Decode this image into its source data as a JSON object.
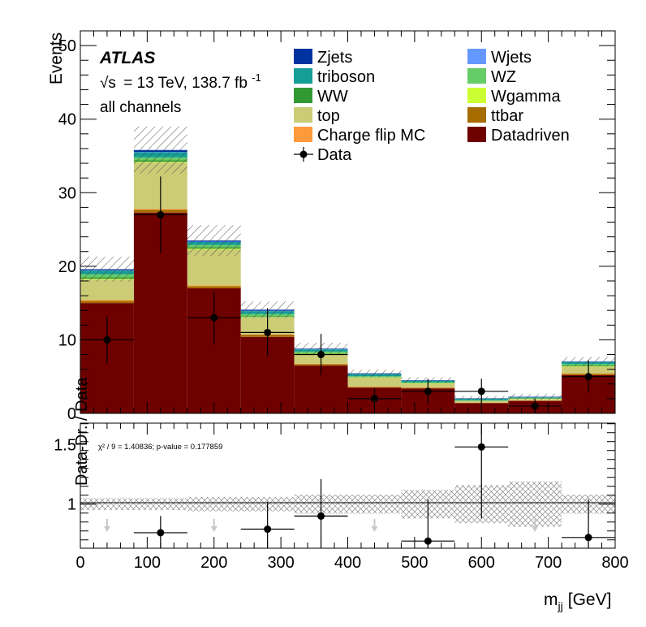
{
  "chart_data": {
    "type": "bar",
    "stacked": true,
    "experiment": "ATLAS",
    "energy_label": "= 13 TeV, 138.7 fb",
    "energy_sqrt": "√s",
    "energy_exp": "-1",
    "channel_label": "all channels",
    "ylabel": "Events",
    "xlabel": "m",
    "xlabel_sub": "jj",
    "xlabel_unit": "[GeV]",
    "xlim": [
      0,
      800
    ],
    "ylim": [
      0,
      52
    ],
    "x_ticks": [
      "0",
      "100",
      "200",
      "300",
      "400",
      "500",
      "600",
      "700",
      "800"
    ],
    "y_ticks": [
      "0",
      "10",
      "20",
      "30",
      "40",
      "50"
    ],
    "bin_edges": [
      0,
      80,
      160,
      240,
      320,
      400,
      480,
      560,
      640,
      720,
      800
    ],
    "series": [
      {
        "name": "Datadriven",
        "color": "#6e0000",
        "values": [
          15.0,
          27.3,
          17.0,
          10.4,
          6.5,
          3.5,
          3.4,
          1.4,
          1.7,
          5.2
        ]
      },
      {
        "name": "ttbar",
        "color": "#a66c00",
        "values": [
          0.3,
          0.4,
          0.3,
          0.3,
          0.2,
          0.1,
          0.1,
          0.05,
          0.05,
          0.2
        ]
      },
      {
        "name": "Charge flip MC",
        "color": "#ff9a3c",
        "values": [
          0.1,
          0.1,
          0.1,
          0.05,
          0.05,
          0.05,
          0.05,
          0.02,
          0.02,
          0.05
        ]
      },
      {
        "name": "top",
        "color": "#cccc77",
        "values": [
          2.8,
          6.3,
          4.9,
          2.3,
          1.3,
          1.2,
          0.5,
          0.2,
          0.2,
          0.9
        ]
      },
      {
        "name": "Wgamma",
        "color": "#ccff33",
        "values": [
          0.1,
          0.1,
          0.1,
          0.05,
          0.05,
          0.05,
          0.05,
          0.02,
          0.02,
          0.05
        ]
      },
      {
        "name": "WW",
        "color": "#339933",
        "values": [
          0.2,
          0.2,
          0.2,
          0.1,
          0.1,
          0.05,
          0.05,
          0.05,
          0.05,
          0.1
        ]
      },
      {
        "name": "WZ",
        "color": "#66cc66",
        "values": [
          0.4,
          0.4,
          0.3,
          0.3,
          0.2,
          0.1,
          0.1,
          0.05,
          0.05,
          0.2
        ]
      },
      {
        "name": "triboson",
        "color": "#149e96",
        "values": [
          0.5,
          0.7,
          0.4,
          0.4,
          0.3,
          0.3,
          0.2,
          0.2,
          0.1,
          0.3
        ]
      },
      {
        "name": "Wjets",
        "color": "#6699ff",
        "values": [
          0.05,
          0.05,
          0.05,
          0.05,
          0.02,
          0.02,
          0.02,
          0.02,
          0.02,
          0.02
        ]
      },
      {
        "name": "Zjets",
        "color": "#0033a0",
        "values": [
          0.15,
          0.25,
          0.15,
          0.15,
          0.08,
          0.08,
          0.05,
          0.05,
          0.05,
          0.05
        ]
      }
    ],
    "mc_uncertainty": [
      1.7,
      3.2,
      2.1,
      1.1,
      0.8,
      0.5,
      0.4,
      0.3,
      0.4,
      0.6
    ],
    "data": {
      "name": "Data",
      "x": [
        40,
        120,
        200,
        280,
        360,
        440,
        520,
        600,
        680,
        760
      ],
      "y": [
        10,
        27,
        13,
        11,
        8,
        2,
        3,
        3,
        1,
        5
      ],
      "yerr": [
        3.2,
        5.2,
        3.6,
        3.3,
        2.8,
        1.4,
        1.7,
        1.7,
        1.0,
        2.2
      ]
    },
    "legend": {
      "left": [
        "Zjets",
        "triboson",
        "WW",
        "top",
        "Charge flip MC",
        "Data"
      ],
      "right": [
        "Wjets",
        "WZ",
        "Wgamma",
        "ttbar",
        "Datadriven"
      ]
    },
    "ratio": {
      "ylabel": "Data-Dr. / Data",
      "ylim": [
        0.63,
        1.68
      ],
      "y_ticks": [
        "1",
        "1.5"
      ],
      "chi2_text": "χ² / 9 = 1.40836; p-value = 0.177859",
      "x": [
        40,
        120,
        200,
        280,
        360,
        440,
        520,
        600,
        680,
        760
      ],
      "values": [
        null,
        0.76,
        null,
        0.79,
        0.9,
        null,
        0.69,
        1.48,
        null,
        0.72
      ],
      "yerr": [
        null,
        0.14,
        null,
        0.23,
        0.31,
        null,
        0.35,
        0.6,
        null,
        0.32
      ],
      "out_of_range_low": [
        40,
        200,
        440,
        680
      ],
      "band_halfwidth": [
        0.05,
        0.05,
        0.06,
        0.06,
        0.08,
        0.08,
        0.12,
        0.16,
        0.19,
        0.08
      ]
    }
  }
}
